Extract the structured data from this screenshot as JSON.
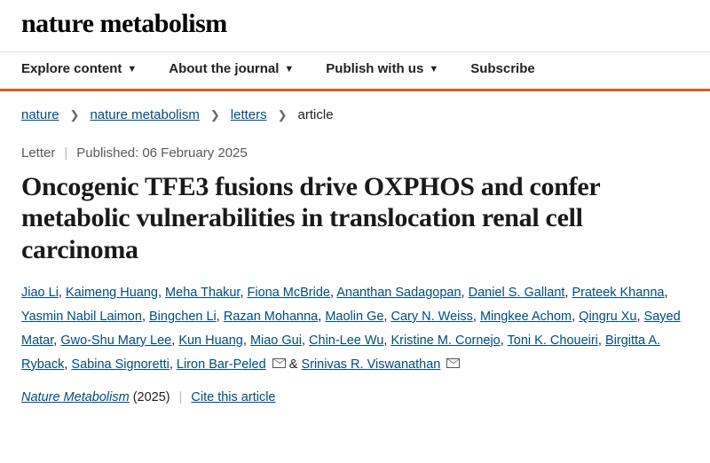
{
  "brand": "nature metabolism",
  "nav": {
    "explore": "Explore content",
    "about": "About the journal",
    "publish": "Publish with us",
    "subscribe": "Subscribe"
  },
  "breadcrumbs": {
    "root": "nature",
    "section": "nature metabolism",
    "type": "letters",
    "current": "article"
  },
  "meta": {
    "category": "Letter",
    "published_label": "Published:",
    "published_date": "06 February 2025"
  },
  "title": "Oncogenic TFE3 fusions drive OXPHOS and confer metabolic vulnerabilities in translocation renal cell carcinoma",
  "authors": [
    "Jiao Li",
    "Kaimeng Huang",
    "Meha Thakur",
    "Fiona McBride",
    "Ananthan Sadagopan",
    "Daniel S. Gallant",
    "Prateek Khanna",
    "Yasmin Nabil Laimon",
    "Bingchen Li",
    "Razan Mohanna",
    "Maolin Ge",
    "Cary N. Weiss",
    "Mingkee Achom",
    "Qingru Xu",
    "Sayed Matar",
    "Gwo-Shu Mary Lee",
    "Kun Huang",
    "Miao Gui",
    "Chin-Lee Wu",
    "Kristine M. Cornejo",
    "Toni K. Choueiri",
    "Birgitta A. Ryback",
    "Sabina Signoretti",
    "Liron Bar-Peled",
    "Srinivas R. Viswanathan"
  ],
  "corresponding_indices": [
    23,
    24
  ],
  "journal": {
    "name": "Nature Metabolism",
    "year": "(2025)",
    "cite": "Cite this article"
  },
  "colors": {
    "accent_bar": "#e65826",
    "link": "#004b83",
    "text": "#222222"
  }
}
